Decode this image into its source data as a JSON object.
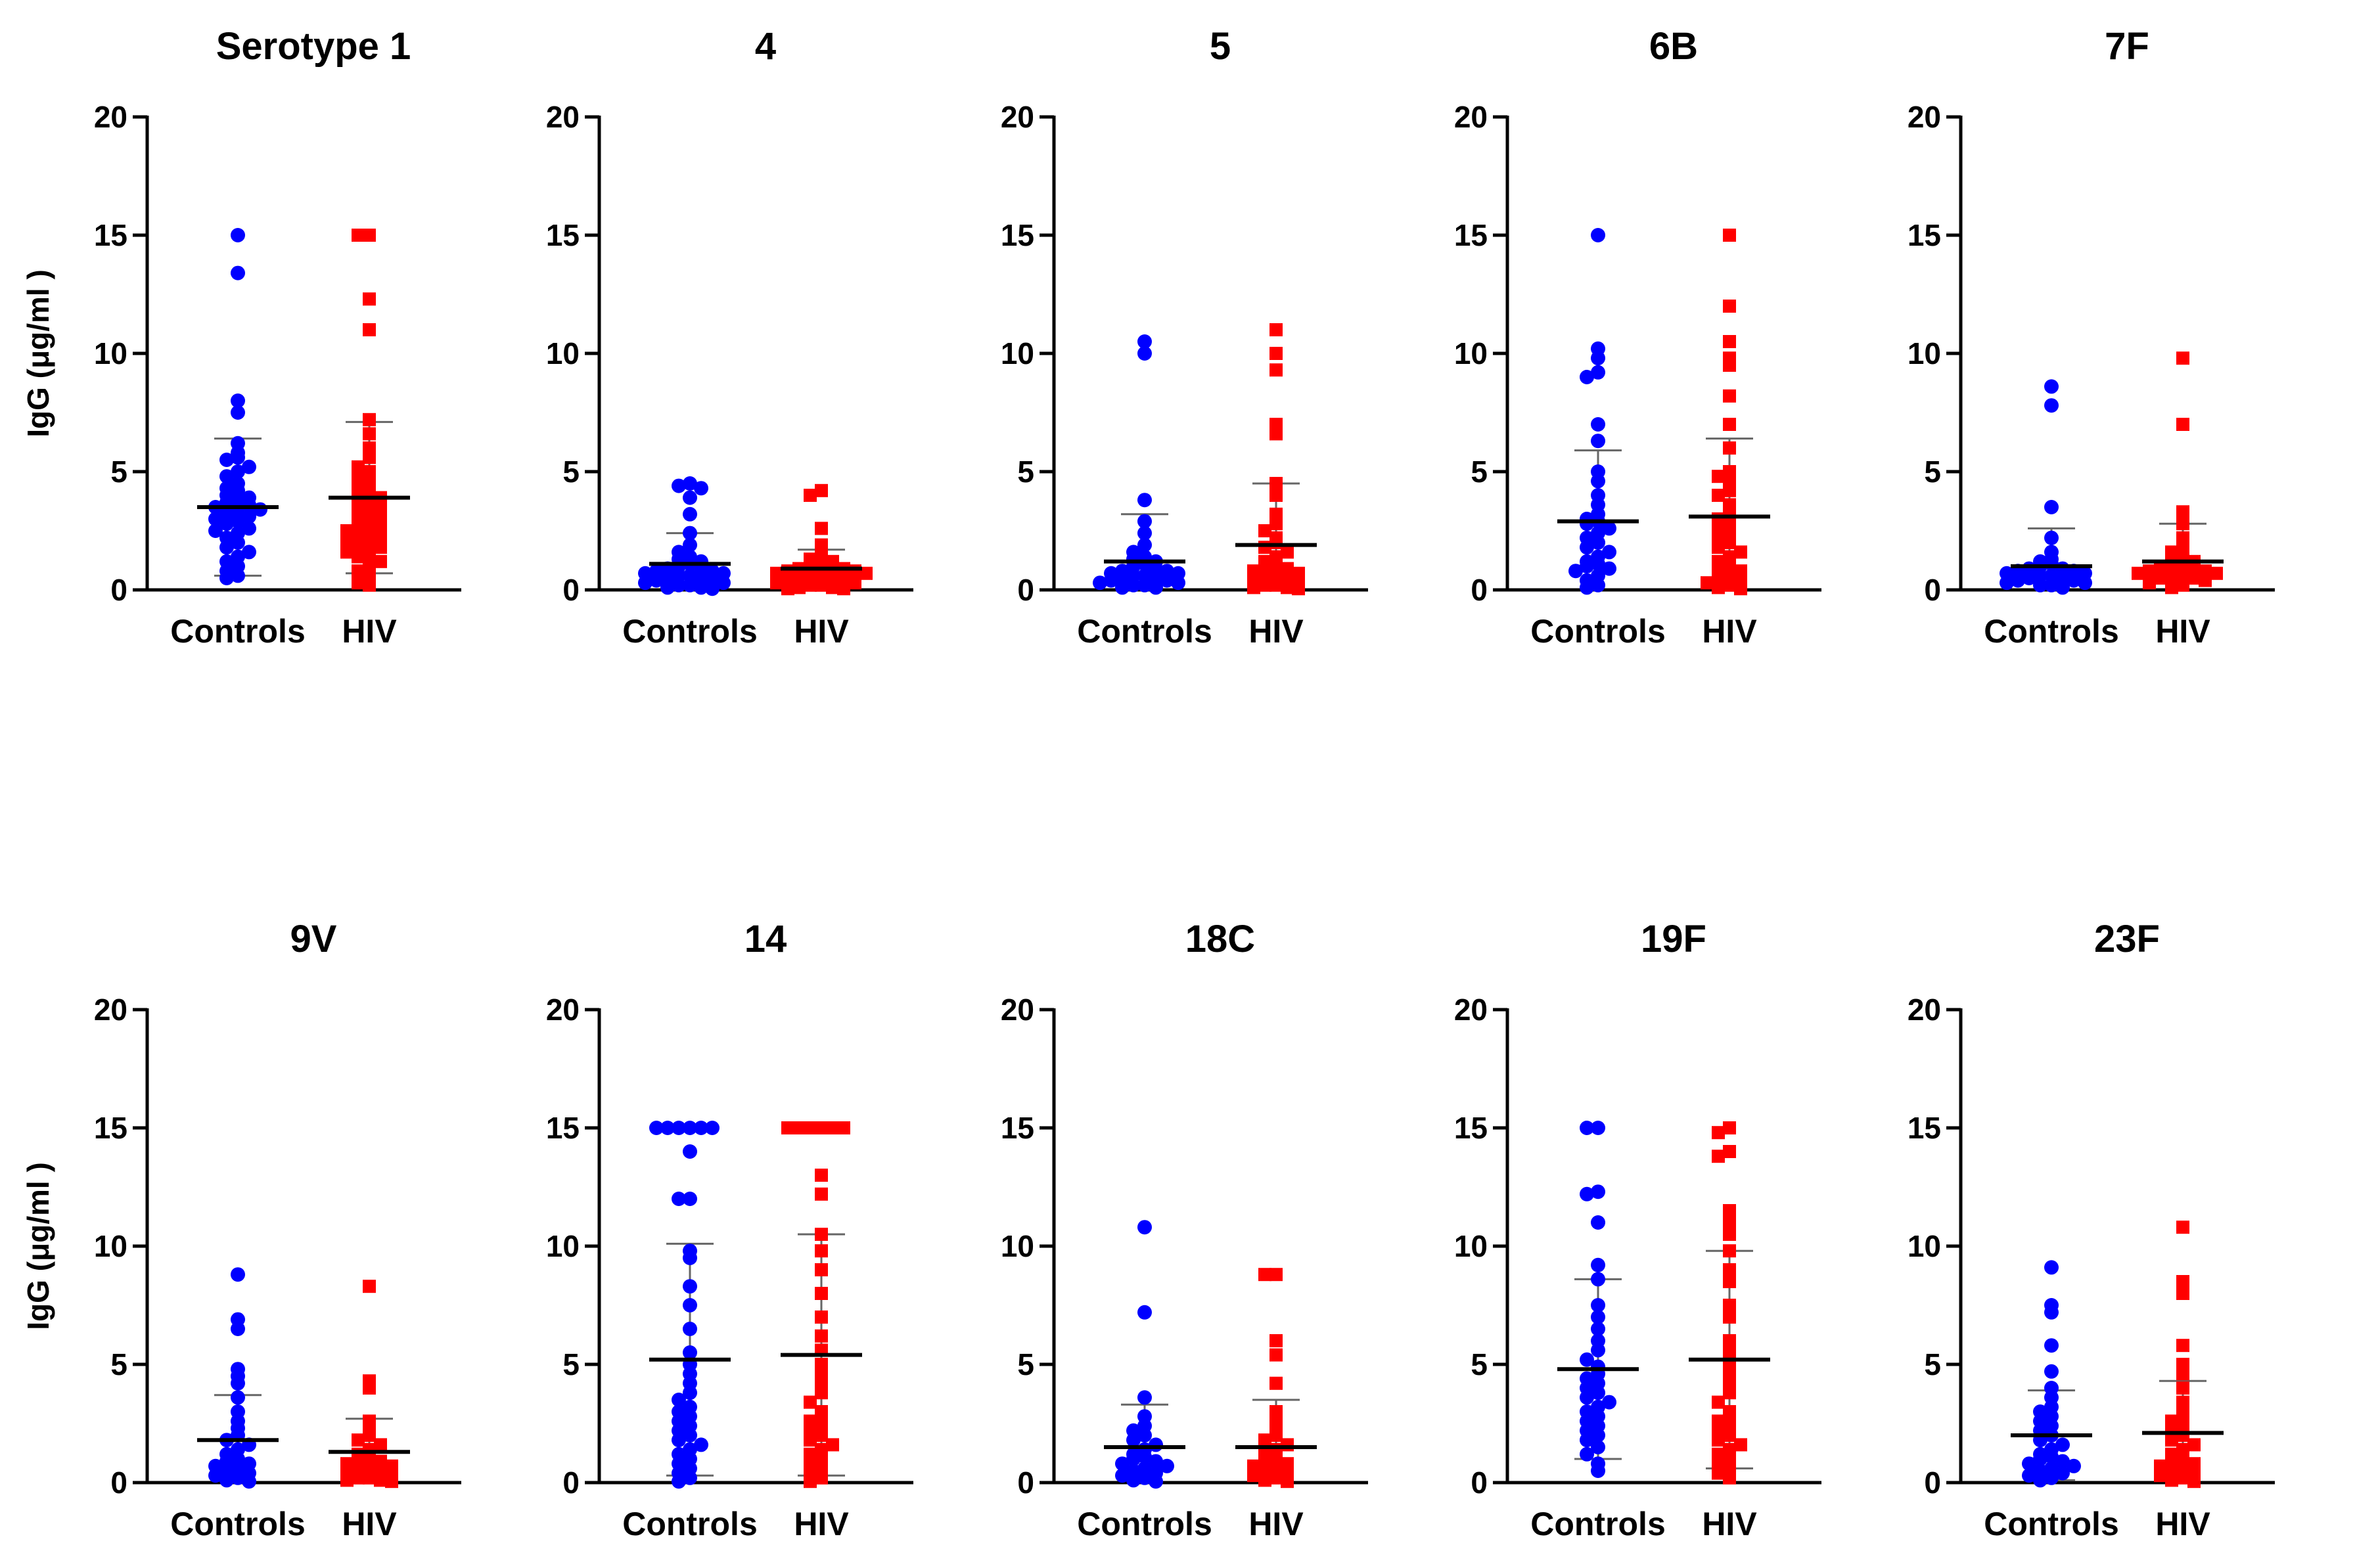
{
  "colors": {
    "controls": "#0000ff",
    "hiv": "#ff0000",
    "axis": "#000000",
    "mean": "#000000",
    "sd": "#666666"
  },
  "chart_data": [
    {
      "type": "scatter",
      "title": "Serotype 1",
      "ylabel": "IgG (μg/ml )",
      "ylim": [
        0,
        20
      ],
      "yticks": [
        "0",
        "5",
        "10",
        "15",
        "20"
      ],
      "categories": [
        "Controls",
        "HIV"
      ],
      "series": [
        {
          "group": "Controls",
          "marker": "circle",
          "mean": 3.5,
          "sd": 2.9,
          "values": [
            15,
            13.4,
            8.0,
            7.5,
            6.2,
            5.8,
            5.6,
            5.5,
            5.2,
            5.0,
            4.8,
            4.5,
            4.3,
            4.2,
            4.0,
            3.9,
            3.8,
            3.7,
            3.6,
            3.5,
            3.4,
            3.3,
            3.2,
            3.1,
            3.0,
            2.9,
            2.8,
            2.6,
            2.5,
            2.4,
            2.2,
            2.0,
            1.8,
            1.6,
            1.4,
            1.2,
            1.0,
            0.8,
            0.6,
            0.5
          ]
        },
        {
          "group": "HIV",
          "marker": "square",
          "mean": 3.9,
          "sd": 3.2,
          "values": [
            15,
            15,
            12.3,
            11.0,
            7.2,
            6.6,
            6.0,
            5.6,
            5.2,
            5.0,
            4.8,
            4.6,
            4.4,
            4.2,
            4.0,
            3.9,
            3.8,
            3.6,
            3.4,
            3.3,
            3.2,
            3.0,
            2.9,
            2.8,
            2.6,
            2.5,
            2.4,
            2.3,
            2.2,
            2.1,
            2.0,
            1.9,
            1.8,
            1.6,
            1.5,
            1.4,
            1.2,
            1.0,
            0.8,
            0.5,
            0.3,
            0.2
          ]
        }
      ]
    },
    {
      "type": "scatter",
      "title": "4",
      "ylim": [
        0,
        20
      ],
      "yticks": [
        "0",
        "5",
        "10",
        "15",
        "20"
      ],
      "categories": [
        "Controls",
        "HIV"
      ],
      "series": [
        {
          "group": "Controls",
          "marker": "circle",
          "mean": 1.1,
          "sd": 1.3,
          "values": [
            4.5,
            4.4,
            4.3,
            3.9,
            3.2,
            2.4,
            1.9,
            1.6,
            1.4,
            1.3,
            1.2,
            1.1,
            1.0,
            0.9,
            0.9,
            0.8,
            0.8,
            0.7,
            0.7,
            0.6,
            0.6,
            0.5,
            0.5,
            0.4,
            0.4,
            0.3,
            0.3,
            0.2,
            0.2,
            0.1,
            0.1,
            0.05
          ]
        },
        {
          "group": "HIV",
          "marker": "square",
          "mean": 0.9,
          "sd": 0.8,
          "values": [
            4.2,
            4.0,
            2.6,
            1.9,
            1.5,
            1.3,
            1.2,
            1.1,
            1.0,
            1.0,
            0.9,
            0.9,
            0.8,
            0.8,
            0.7,
            0.7,
            0.6,
            0.6,
            0.5,
            0.5,
            0.4,
            0.4,
            0.3,
            0.3,
            0.2,
            0.2,
            0.1,
            0.1,
            0.05,
            0.05
          ]
        }
      ]
    },
    {
      "type": "scatter",
      "title": "5",
      "ylim": [
        0,
        20
      ],
      "yticks": [
        "0",
        "5",
        "10",
        "15",
        "20"
      ],
      "categories": [
        "Controls",
        "HIV"
      ],
      "series": [
        {
          "group": "Controls",
          "marker": "circle",
          "mean": 1.2,
          "sd": 2.0,
          "values": [
            10.5,
            10.0,
            3.8,
            2.9,
            2.4,
            1.9,
            1.6,
            1.4,
            1.3,
            1.2,
            1.1,
            1.0,
            0.9,
            0.8,
            0.8,
            0.7,
            0.7,
            0.6,
            0.6,
            0.5,
            0.5,
            0.4,
            0.4,
            0.3,
            0.3,
            0.2,
            0.2,
            0.1,
            0.1
          ]
        },
        {
          "group": "HIV",
          "marker": "square",
          "mean": 1.9,
          "sd": 2.6,
          "values": [
            11.0,
            10.0,
            9.3,
            7.0,
            6.6,
            4.5,
            4.0,
            3.2,
            2.8,
            2.5,
            2.2,
            2.0,
            1.8,
            1.6,
            1.4,
            1.2,
            1.1,
            1.0,
            0.9,
            0.8,
            0.7,
            0.6,
            0.5,
            0.4,
            0.3,
            0.3,
            0.2,
            0.2,
            0.1,
            0.1,
            0.05
          ]
        }
      ]
    },
    {
      "type": "scatter",
      "title": "6B",
      "ylim": [
        0,
        20
      ],
      "yticks": [
        "0",
        "5",
        "10",
        "15",
        "20"
      ],
      "categories": [
        "Controls",
        "HIV"
      ],
      "series": [
        {
          "group": "Controls",
          "marker": "circle",
          "mean": 2.9,
          "sd": 3.0,
          "values": [
            15,
            10.2,
            9.8,
            9.2,
            9.0,
            7.0,
            6.3,
            5.0,
            4.6,
            4.0,
            3.6,
            3.2,
            3.0,
            2.9,
            2.8,
            2.6,
            2.4,
            2.2,
            2.0,
            1.8,
            1.6,
            1.4,
            1.2,
            1.1,
            1.0,
            0.9,
            0.8,
            0.6,
            0.4,
            0.2,
            0.1
          ]
        },
        {
          "group": "HIV",
          "marker": "square",
          "mean": 3.1,
          "sd": 3.3,
          "values": [
            15,
            12.0,
            10.5,
            9.8,
            9.5,
            8.2,
            7.0,
            6.0,
            5.0,
            4.8,
            4.5,
            4.2,
            4.0,
            3.6,
            3.3,
            3.0,
            2.8,
            2.6,
            2.4,
            2.2,
            2.0,
            1.8,
            1.6,
            1.4,
            1.2,
            1.0,
            0.9,
            0.8,
            0.6,
            0.5,
            0.4,
            0.3,
            0.2,
            0.1,
            0.05
          ]
        }
      ]
    },
    {
      "type": "scatter",
      "title": "7F",
      "ylim": [
        0,
        20
      ],
      "yticks": [
        "0",
        "5",
        "10",
        "15",
        "20"
      ],
      "categories": [
        "Controls",
        "HIV"
      ],
      "series": [
        {
          "group": "Controls",
          "marker": "circle",
          "mean": 1.0,
          "sd": 1.6,
          "values": [
            8.6,
            7.8,
            3.5,
            2.2,
            1.6,
            1.3,
            1.2,
            1.1,
            1.0,
            0.9,
            0.9,
            0.8,
            0.8,
            0.7,
            0.7,
            0.6,
            0.6,
            0.5,
            0.5,
            0.4,
            0.4,
            0.3,
            0.3,
            0.2,
            0.2,
            0.1
          ]
        },
        {
          "group": "HIV",
          "marker": "square",
          "mean": 1.2,
          "sd": 1.6,
          "values": [
            9.8,
            7.0,
            3.3,
            2.8,
            2.2,
            1.8,
            1.6,
            1.4,
            1.3,
            1.2,
            1.1,
            1.0,
            0.9,
            0.9,
            0.8,
            0.8,
            0.7,
            0.7,
            0.6,
            0.6,
            0.5,
            0.5,
            0.4,
            0.3,
            0.2,
            0.1
          ]
        }
      ]
    },
    {
      "type": "scatter",
      "title": "9V",
      "ylabel": "IgG (μg/ml )",
      "ylim": [
        0,
        20
      ],
      "yticks": [
        "0",
        "5",
        "10",
        "15",
        "20"
      ],
      "categories": [
        "Controls",
        "HIV"
      ],
      "series": [
        {
          "group": "Controls",
          "marker": "circle",
          "mean": 1.8,
          "sd": 1.9,
          "values": [
            8.8,
            6.9,
            6.5,
            4.8,
            4.5,
            4.2,
            3.6,
            3.0,
            2.6,
            2.3,
            2.0,
            1.8,
            1.6,
            1.4,
            1.2,
            1.0,
            0.9,
            0.8,
            0.7,
            0.6,
            0.5,
            0.4,
            0.3,
            0.2,
            0.1,
            0.05
          ]
        },
        {
          "group": "HIV",
          "marker": "square",
          "mean": 1.3,
          "sd": 1.4,
          "values": [
            8.3,
            4.3,
            4.0,
            2.6,
            2.3,
            2.0,
            1.8,
            1.6,
            1.4,
            1.2,
            1.1,
            1.0,
            0.9,
            0.8,
            0.7,
            0.6,
            0.5,
            0.4,
            0.3,
            0.3,
            0.2,
            0.2,
            0.1,
            0.1,
            0.05
          ]
        }
      ]
    },
    {
      "type": "scatter",
      "title": "14",
      "ylim": [
        0,
        20
      ],
      "yticks": [
        "0",
        "5",
        "10",
        "15",
        "20"
      ],
      "categories": [
        "Controls",
        "HIV"
      ],
      "series": [
        {
          "group": "Controls",
          "marker": "circle",
          "mean": 5.2,
          "sd": 4.9,
          "values": [
            15,
            15,
            15,
            15,
            15,
            15,
            14.0,
            12.0,
            12.0,
            9.8,
            9.5,
            8.3,
            7.5,
            6.5,
            5.5,
            5.0,
            4.6,
            4.2,
            3.8,
            3.5,
            3.2,
            3.0,
            2.8,
            2.6,
            2.4,
            2.2,
            2.0,
            1.8,
            1.6,
            1.4,
            1.2,
            1.0,
            0.8,
            0.6,
            0.4,
            0.2,
            0.05
          ]
        },
        {
          "group": "HIV",
          "marker": "square",
          "mean": 5.4,
          "sd": 5.1,
          "values": [
            15,
            15,
            15,
            15,
            15,
            15,
            13.0,
            12.2,
            10.5,
            9.8,
            9.0,
            8.0,
            7.0,
            6.2,
            5.6,
            5.0,
            4.6,
            4.2,
            3.8,
            3.4,
            3.0,
            2.8,
            2.6,
            2.4,
            2.2,
            2.0,
            1.8,
            1.6,
            1.4,
            1.2,
            1.0,
            0.8,
            0.6,
            0.4,
            0.2,
            0.05
          ]
        }
      ]
    },
    {
      "type": "scatter",
      "title": "18C",
      "ylim": [
        0,
        20
      ],
      "yticks": [
        "0",
        "5",
        "10",
        "15",
        "20"
      ],
      "categories": [
        "Controls",
        "HIV"
      ],
      "series": [
        {
          "group": "Controls",
          "marker": "circle",
          "mean": 1.5,
          "sd": 1.8,
          "values": [
            10.8,
            7.2,
            3.6,
            2.8,
            2.4,
            2.2,
            2.0,
            1.8,
            1.6,
            1.4,
            1.2,
            1.1,
            1.0,
            0.9,
            0.8,
            0.7,
            0.6,
            0.5,
            0.4,
            0.3,
            0.2,
            0.1,
            0.05
          ]
        },
        {
          "group": "HIV",
          "marker": "square",
          "mean": 1.5,
          "sd": 2.0,
          "values": [
            8.8,
            8.8,
            6.0,
            5.4,
            4.2,
            3.0,
            2.5,
            2.2,
            2.0,
            1.8,
            1.6,
            1.4,
            1.2,
            1.0,
            0.9,
            0.8,
            0.7,
            0.6,
            0.5,
            0.4,
            0.3,
            0.2,
            0.1,
            0.05
          ]
        }
      ]
    },
    {
      "type": "scatter",
      "title": "19F",
      "ylim": [
        0,
        20
      ],
      "yticks": [
        "0",
        "5",
        "10",
        "15",
        "20"
      ],
      "categories": [
        "Controls",
        "HIV"
      ],
      "series": [
        {
          "group": "Controls",
          "marker": "circle",
          "mean": 4.8,
          "sd": 3.8,
          "values": [
            15,
            15,
            12.3,
            12.2,
            11.0,
            9.2,
            8.6,
            7.5,
            7.0,
            6.5,
            6.0,
            5.6,
            5.2,
            4.9,
            4.6,
            4.4,
            4.2,
            4.0,
            3.8,
            3.6,
            3.4,
            3.2,
            3.0,
            2.8,
            2.6,
            2.4,
            2.2,
            2.0,
            1.8,
            1.5,
            1.2,
            0.8,
            0.5
          ]
        },
        {
          "group": "HIV",
          "marker": "square",
          "mean": 5.2,
          "sd": 4.6,
          "values": [
            15,
            14.8,
            14.0,
            13.8,
            11.5,
            11.0,
            10.5,
            9.8,
            9.0,
            8.5,
            7.5,
            7.0,
            6.0,
            5.5,
            5.0,
            4.6,
            4.2,
            3.8,
            3.4,
            3.0,
            2.8,
            2.6,
            2.4,
            2.2,
            2.0,
            1.8,
            1.6,
            1.4,
            1.2,
            1.0,
            0.8,
            0.6,
            0.4,
            0.2
          ]
        }
      ]
    },
    {
      "type": "scatter",
      "title": "23F",
      "ylim": [
        0,
        20
      ],
      "yticks": [
        "0",
        "5",
        "10",
        "15",
        "20"
      ],
      "categories": [
        "Controls",
        "HIV"
      ],
      "series": [
        {
          "group": "Controls",
          "marker": "circle",
          "mean": 2.0,
          "sd": 1.9,
          "values": [
            9.1,
            7.5,
            7.2,
            5.8,
            4.7,
            4.0,
            3.6,
            3.2,
            3.0,
            2.8,
            2.6,
            2.4,
            2.2,
            2.0,
            1.8,
            1.6,
            1.4,
            1.2,
            1.1,
            1.0,
            0.9,
            0.8,
            0.7,
            0.6,
            0.5,
            0.4,
            0.3,
            0.2,
            0.1
          ]
        },
        {
          "group": "HIV",
          "marker": "square",
          "mean": 2.1,
          "sd": 2.2,
          "values": [
            10.8,
            8.5,
            8.0,
            5.8,
            5.0,
            4.6,
            4.0,
            3.4,
            3.0,
            2.8,
            2.6,
            2.4,
            2.2,
            2.0,
            1.8,
            1.6,
            1.4,
            1.2,
            1.0,
            0.9,
            0.8,
            0.7,
            0.6,
            0.5,
            0.4,
            0.3,
            0.2,
            0.1,
            0.05
          ]
        }
      ]
    }
  ]
}
